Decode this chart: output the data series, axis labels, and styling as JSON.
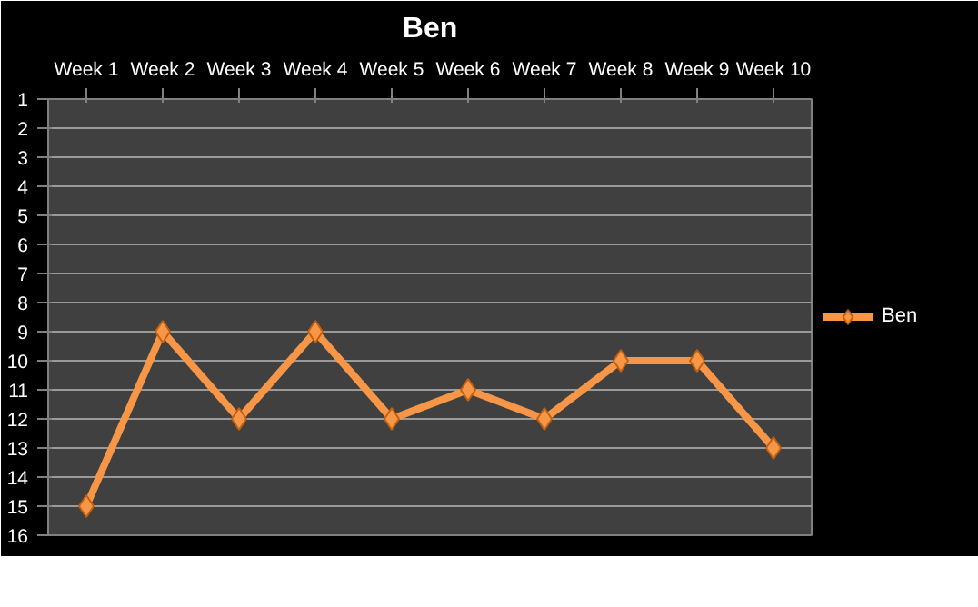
{
  "chart_data": {
    "type": "line",
    "title": "Ben",
    "categories": [
      "Week 1",
      "Week 2",
      "Week 3",
      "Week 4",
      "Week 5",
      "Week 6",
      "Week 7",
      "Week 8",
      "Week 9",
      "Week 10"
    ],
    "series": [
      {
        "name": "Ben",
        "color": "#f79646",
        "values": [
          15,
          9,
          12,
          9,
          12,
          11,
          12,
          10,
          10,
          13
        ]
      }
    ],
    "ylim": [
      16,
      1
    ],
    "yticks": [
      1,
      2,
      3,
      4,
      5,
      6,
      7,
      8,
      9,
      10,
      11,
      12,
      13,
      14,
      15,
      16
    ],
    "grid": "y",
    "legend": "right",
    "marker": "diamond",
    "line_style": "solid"
  }
}
